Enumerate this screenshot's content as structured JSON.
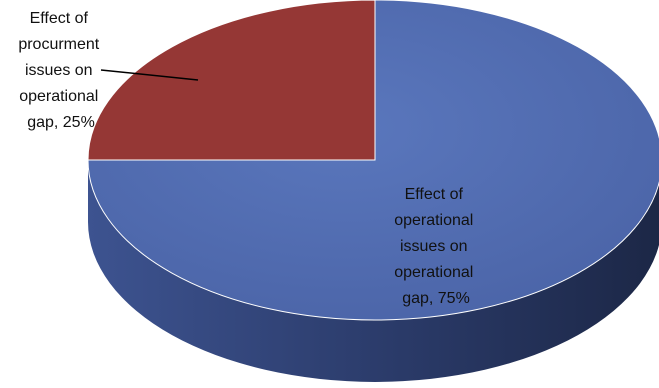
{
  "chart_data": {
    "type": "pie",
    "style": "3d",
    "title": "",
    "categories": [
      "Effect of procurment issues on operational gap",
      "Effect of operational issues on operational gap"
    ],
    "values": [
      25,
      75
    ],
    "colors": [
      "#953735",
      "#4F6BB0"
    ],
    "data_labels": [
      [
        "Effect of",
        "procurment",
        "issues on",
        "operational",
        "gap, 25%"
      ],
      [
        "Effect of",
        "operational",
        "issues on",
        "operational",
        "gap, 75%"
      ]
    ]
  }
}
